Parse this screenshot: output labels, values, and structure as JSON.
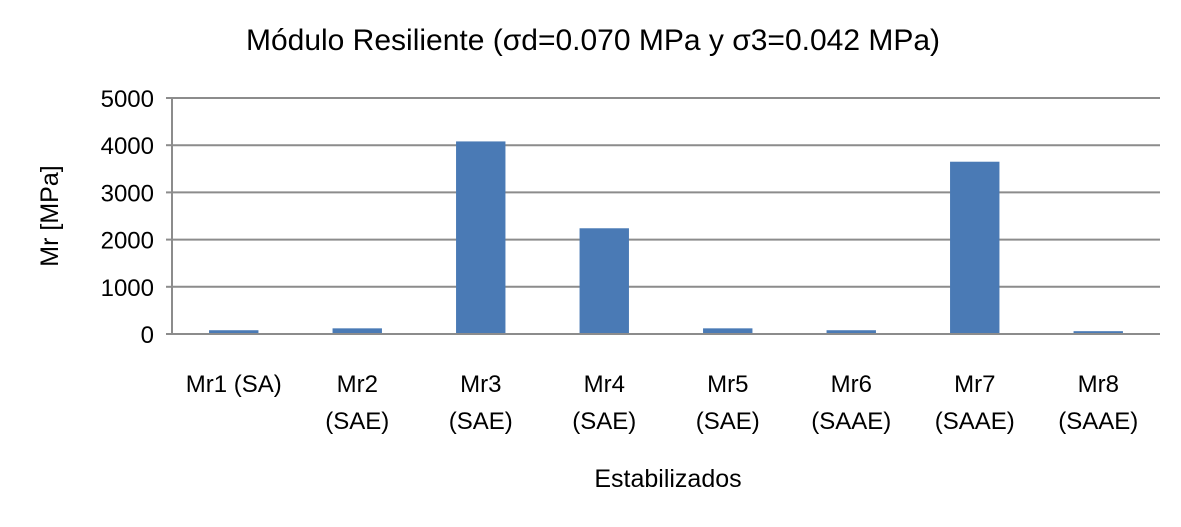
{
  "chart_data": {
    "type": "bar",
    "title": "Módulo Resiliente (σd=0.070 MPa y σ3=0.042 MPa)",
    "xlabel": "Estabilizados",
    "ylabel": "Mr [MPa]",
    "categories": [
      [
        "Mr1 (SA)"
      ],
      [
        "Mr2",
        "(SAE)"
      ],
      [
        "Mr3",
        "(SAE)"
      ],
      [
        "Mr4",
        "(SAE)"
      ],
      [
        "Mr5",
        "(SAE)"
      ],
      [
        "Mr6",
        "(SAAE)"
      ],
      [
        "Mr7",
        "(SAAE)"
      ],
      [
        "Mr8",
        "(SAAE)"
      ]
    ],
    "values": [
      80,
      120,
      4080,
      2240,
      120,
      80,
      3650,
      60
    ],
    "ylim": [
      0,
      5000
    ],
    "yticks": [
      0,
      1000,
      2000,
      3000,
      4000,
      5000
    ],
    "grid": true,
    "legend": "none",
    "colors": {
      "bar": "#4a7ab5",
      "grid": "#8c8c8c",
      "axis": "#8c8c8c"
    }
  }
}
